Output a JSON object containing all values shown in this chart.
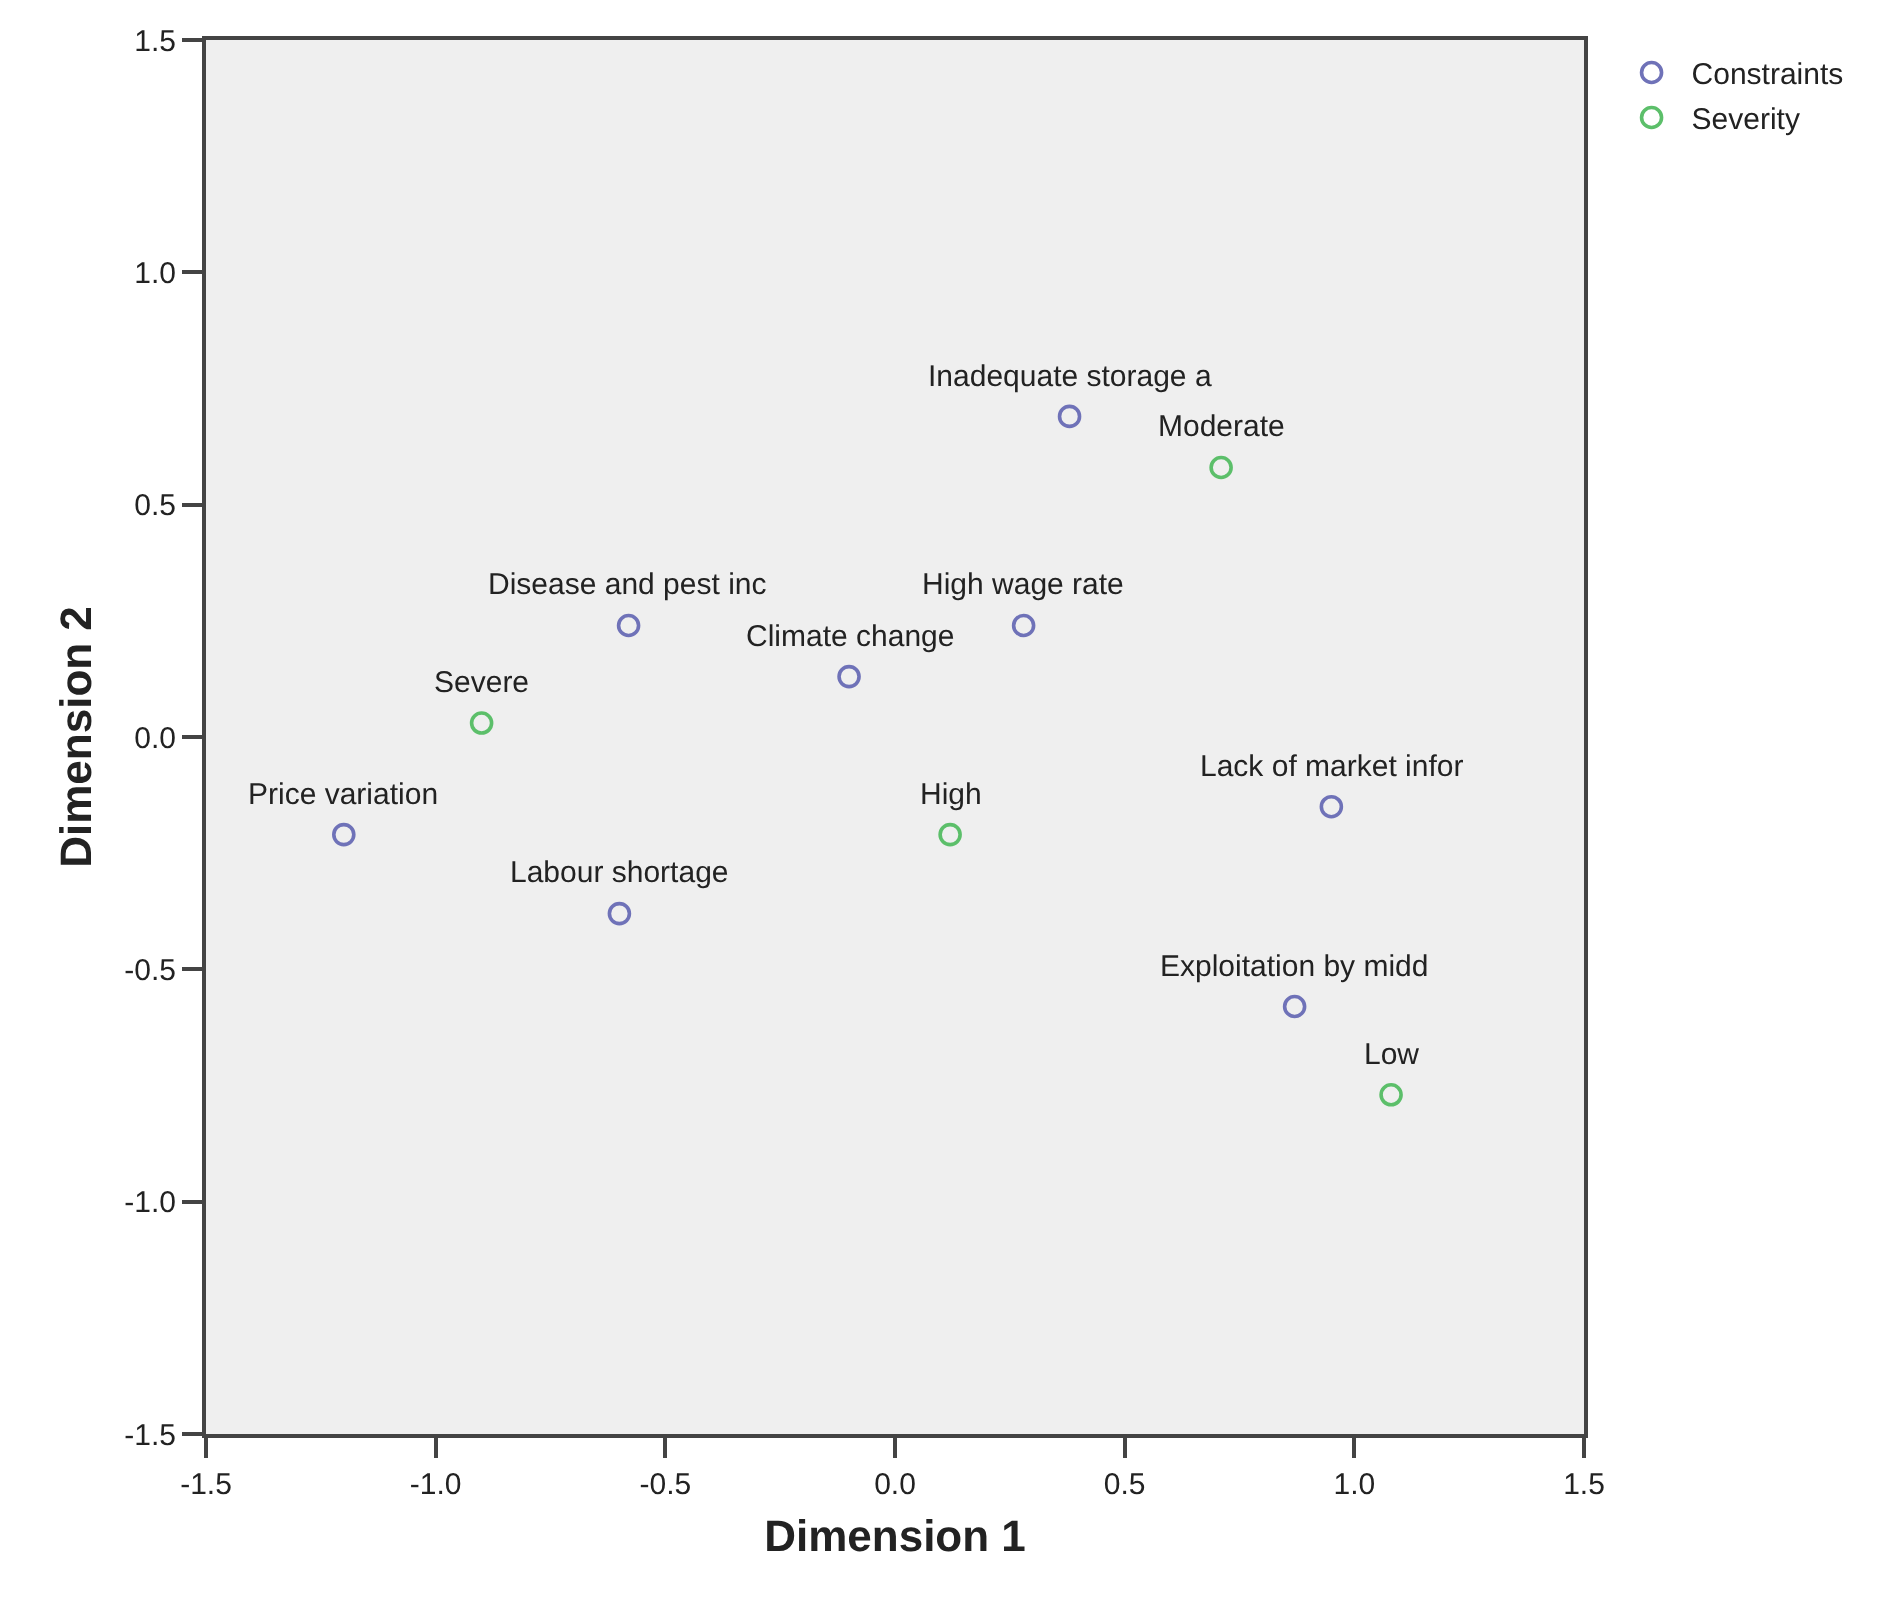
{
  "chart_data": {
    "type": "scatter",
    "xlabel": "Dimension 1",
    "ylabel": "Dimension 2",
    "series": [
      {
        "name": "Constraints",
        "color": "#6f72b8",
        "x": [
          0.38,
          0.28,
          -0.58,
          -0.1,
          -1.2,
          -0.6,
          0.95,
          0.87
        ],
        "values": [
          0.69,
          0.24,
          0.24,
          0.13,
          -0.21,
          -0.38,
          -0.15,
          -0.58
        ]
      },
      {
        "name": "Severity",
        "color": "#5cbf6a",
        "x": [
          0.71,
          -0.9,
          0.12,
          1.08
        ],
        "values": [
          0.58,
          0.03,
          -0.21,
          -0.77
        ]
      }
    ],
    "annotations": [
      {
        "text": "Inadequate storage a",
        "x": 0.38,
        "y": 0.69
      },
      {
        "text": "High wage rate",
        "x": 0.28,
        "y": 0.24
      },
      {
        "text": "Disease and pest inc",
        "x": -0.58,
        "y": 0.24
      },
      {
        "text": "Climate change",
        "x": -0.1,
        "y": 0.13
      },
      {
        "text": "Price variation",
        "x": -1.2,
        "y": -0.21
      },
      {
        "text": "Labour shortage",
        "x": -0.6,
        "y": -0.38
      },
      {
        "text": "Lack of market infor",
        "x": 0.95,
        "y": -0.15
      },
      {
        "text": "Exploitation by midd",
        "x": 0.87,
        "y": -0.58
      },
      {
        "text": "Moderate",
        "x": 0.71,
        "y": 0.58
      },
      {
        "text": "Severe",
        "x": -0.9,
        "y": 0.03
      },
      {
        "text": "High",
        "x": 0.12,
        "y": -0.21
      },
      {
        "text": "Low",
        "x": 1.08,
        "y": -0.77
      }
    ],
    "xlim": [
      -1.5,
      1.5
    ],
    "xticks": [
      {
        "value": -1.5,
        "label": "-1.5"
      },
      {
        "value": -1.0,
        "label": "-1.0"
      },
      {
        "value": -0.5,
        "label": "-0.5"
      },
      {
        "value": 0.0,
        "label": "0.0"
      },
      {
        "value": 0.5,
        "label": "0.5"
      },
      {
        "value": 1.0,
        "label": "1.0"
      },
      {
        "value": 1.5,
        "label": "1.5"
      }
    ],
    "ylim": [
      -1.5,
      1.5
    ],
    "yticks": [
      {
        "value": -1.5,
        "label": "-1.5"
      },
      {
        "value": -1.0,
        "label": "-1.0"
      },
      {
        "value": -0.5,
        "label": "-0.5"
      },
      {
        "value": 0.0,
        "label": "0.0"
      },
      {
        "value": 0.5,
        "label": "0.5"
      },
      {
        "value": 1.0,
        "label": "1.0"
      },
      {
        "value": 1.5,
        "label": "1.5"
      }
    ],
    "grid": false,
    "legend": "top right",
    "marker": "circle"
  }
}
